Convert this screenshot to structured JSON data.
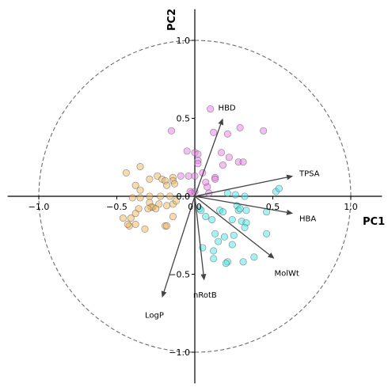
{
  "chart_data": {
    "type": "scatter",
    "title": "",
    "xlabel": "PC1",
    "ylabel": "PC2",
    "xlim": [
      -1.2,
      1.2
    ],
    "ylim": [
      -1.2,
      1.2
    ],
    "xticks": [
      "−1.0",
      "−0.5",
      "0.0",
      "0.5",
      "1.0"
    ],
    "yticks": [
      "−1.0",
      "−0.5",
      "0.0",
      "0.5",
      "1.0"
    ],
    "tick_values": [
      -1.0,
      -0.5,
      0.0,
      0.5,
      1.0
    ],
    "grid": false,
    "unit_circle": true,
    "series": [
      {
        "color": "#f0b55c",
        "points": [
          [
            -0.44,
            0.15
          ],
          [
            -0.35,
            0.19
          ],
          [
            -0.38,
            0.07
          ],
          [
            -0.35,
            0.04
          ],
          [
            -0.29,
            0.11
          ],
          [
            -0.24,
            0.13
          ],
          [
            -0.21,
            0.11
          ],
          [
            -0.19,
            0.1
          ],
          [
            -0.14,
            0.12
          ],
          [
            -0.18,
            0.07
          ],
          [
            -0.14,
            0.1
          ],
          [
            -0.13,
            0.08
          ],
          [
            -0.29,
            0.0
          ],
          [
            -0.22,
            0.0
          ],
          [
            -0.16,
            0.0
          ],
          [
            -0.4,
            -0.01
          ],
          [
            -0.35,
            -0.01
          ],
          [
            -0.29,
            -0.04
          ],
          [
            -0.27,
            -0.07
          ],
          [
            -0.23,
            -0.05
          ],
          [
            -0.18,
            -0.06
          ],
          [
            -0.14,
            -0.05
          ],
          [
            -0.12,
            -0.03
          ],
          [
            -0.36,
            -0.08
          ],
          [
            -0.38,
            -0.11
          ],
          [
            -0.41,
            -0.14
          ],
          [
            -0.46,
            -0.14
          ],
          [
            -0.42,
            -0.19
          ],
          [
            -0.38,
            -0.18
          ],
          [
            -0.32,
            -0.21
          ],
          [
            -0.28,
            -0.07
          ],
          [
            -0.25,
            -0.08
          ],
          [
            -0.19,
            -0.19
          ],
          [
            -0.14,
            -0.13
          ],
          [
            -0.18,
            -0.19
          ],
          [
            -0.43,
            -0.18
          ],
          [
            -0.3,
            -0.08
          ]
        ]
      },
      {
        "color": "#ea7ce8",
        "points": [
          [
            0.1,
            0.56
          ],
          [
            -0.15,
            0.42
          ],
          [
            0.12,
            0.41
          ],
          [
            0.21,
            0.4
          ],
          [
            0.29,
            0.44
          ],
          [
            0.44,
            0.42
          ],
          [
            -0.05,
            0.29
          ],
          [
            0.0,
            0.28
          ],
          [
            0.02,
            0.27
          ],
          [
            0.17,
            0.28
          ],
          [
            0.22,
            0.25
          ],
          [
            0.28,
            0.22
          ],
          [
            0.31,
            0.22
          ],
          [
            0.18,
            0.2
          ],
          [
            0.02,
            0.23
          ],
          [
            0.02,
            0.21
          ],
          [
            0.05,
            0.15
          ],
          [
            0.0,
            0.13
          ],
          [
            -0.04,
            0.13
          ],
          [
            -0.09,
            0.13
          ],
          [
            0.13,
            0.12
          ],
          [
            0.13,
            0.11
          ],
          [
            0.07,
            0.09
          ],
          [
            0.08,
            0.06
          ],
          [
            0.09,
            0.02
          ],
          [
            -0.02,
            0.02
          ],
          [
            0.0,
            0.03
          ],
          [
            -0.03,
            0.03
          ]
        ]
      },
      {
        "color": "#4ee6e8",
        "points": [
          [
            0.21,
            0.02
          ],
          [
            0.26,
            0.01
          ],
          [
            0.32,
            0.0
          ],
          [
            0.52,
            0.03
          ],
          [
            0.54,
            0.05
          ],
          [
            0.03,
            -0.08
          ],
          [
            0.04,
            -0.09
          ],
          [
            0.16,
            -0.09
          ],
          [
            0.18,
            -0.1
          ],
          [
            0.27,
            -0.06
          ],
          [
            0.28,
            -0.09
          ],
          [
            0.29,
            -0.08
          ],
          [
            0.33,
            -0.09
          ],
          [
            0.46,
            -0.1
          ],
          [
            0.07,
            -0.13
          ],
          [
            0.11,
            -0.15
          ],
          [
            0.24,
            -0.15
          ],
          [
            0.3,
            -0.16
          ],
          [
            0.33,
            -0.17
          ],
          [
            0.32,
            -0.2
          ],
          [
            0.46,
            -0.24
          ],
          [
            0.13,
            -0.24
          ],
          [
            0.19,
            -0.26
          ],
          [
            0.25,
            -0.25
          ],
          [
            0.15,
            -0.29
          ],
          [
            0.24,
            -0.31
          ],
          [
            0.05,
            -0.33
          ],
          [
            0.12,
            -0.35
          ],
          [
            0.12,
            -0.4
          ],
          [
            0.21,
            -0.42
          ],
          [
            0.2,
            -0.43
          ],
          [
            0.31,
            -0.42
          ],
          [
            0.38,
            -0.39
          ]
        ]
      }
    ],
    "vectors": [
      {
        "label": "HBD",
        "dx": 0.18,
        "dy": 0.5,
        "lx": 0.15,
        "ly": 0.57
      },
      {
        "label": "TPSA",
        "dx": 0.63,
        "dy": 0.13,
        "lx": 0.67,
        "ly": 0.15
      },
      {
        "label": "HBA",
        "dx": 0.63,
        "dy": -0.11,
        "lx": 0.67,
        "ly": -0.14
      },
      {
        "label": "MolWt",
        "dx": 0.51,
        "dy": -0.4,
        "lx": 0.51,
        "ly": -0.49
      },
      {
        "label": "nRotB",
        "dx": 0.06,
        "dy": -0.54,
        "lx": -0.01,
        "ly": -0.63
      },
      {
        "label": "LogP",
        "dx": -0.21,
        "dy": -0.65,
        "lx": -0.32,
        "ly": -0.76
      }
    ]
  }
}
